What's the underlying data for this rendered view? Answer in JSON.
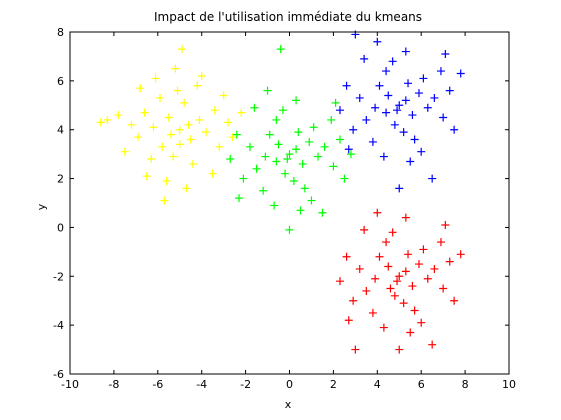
{
  "chart_data": {
    "type": "scatter",
    "title": "Impact de l'utilisation immédiate du kmeans",
    "xlabel": "x",
    "ylabel": "y",
    "xlim": [
      -10,
      10
    ],
    "ylim": [
      -6,
      8
    ],
    "xticks": [
      "-10",
      "-8",
      "-6",
      "-4",
      "-2",
      "0",
      "2",
      "4",
      "6",
      "8",
      "10"
    ],
    "yticks": [
      "-6",
      "-4",
      "-2",
      "0",
      "2",
      "4",
      "6",
      "8"
    ],
    "grid": false,
    "marker": "plus",
    "series": [
      {
        "color": "#ffff00",
        "points": [
          [
            -5.0,
            4.0
          ],
          [
            -5.5,
            4.5
          ],
          [
            -4.5,
            3.6
          ],
          [
            -6.2,
            4.1
          ],
          [
            -4.1,
            4.4
          ],
          [
            -5.8,
            3.3
          ],
          [
            -4.8,
            5.1
          ],
          [
            -5.3,
            2.9
          ],
          [
            -6.6,
            4.7
          ],
          [
            -3.8,
            3.9
          ],
          [
            -5.1,
            5.6
          ],
          [
            -6.9,
            3.7
          ],
          [
            -4.4,
            2.6
          ],
          [
            -3.4,
            4.8
          ],
          [
            -5.9,
            5.3
          ],
          [
            -6.3,
            2.8
          ],
          [
            -4.2,
            5.8
          ],
          [
            -7.2,
            4.2
          ],
          [
            -5.6,
            1.9
          ],
          [
            -3.2,
            3.3
          ],
          [
            -6.1,
            6.1
          ],
          [
            -4.7,
            1.6
          ],
          [
            -7.5,
            3.1
          ],
          [
            -2.8,
            4.3
          ],
          [
            -5.2,
            6.5
          ],
          [
            -7.8,
            4.6
          ],
          [
            -3.5,
            2.2
          ],
          [
            -6.8,
            5.7
          ],
          [
            -2.6,
            3.7
          ],
          [
            -4.0,
            6.2
          ],
          [
            -8.3,
            4.4
          ],
          [
            -5.7,
            1.1
          ],
          [
            -4.9,
            7.3
          ],
          [
            -8.6,
            4.3
          ],
          [
            -2.2,
            4.7
          ],
          [
            -6.5,
            2.1
          ],
          [
            -3.0,
            5.4
          ],
          [
            -5.4,
            3.8
          ],
          [
            -4.6,
            4.2
          ],
          [
            -5.0,
            3.4
          ]
        ]
      },
      {
        "color": "#00ff00",
        "points": [
          [
            0.0,
            3.0
          ],
          [
            -0.5,
            3.4
          ],
          [
            0.6,
            2.6
          ],
          [
            -1.1,
            2.9
          ],
          [
            0.9,
            3.5
          ],
          [
            -0.2,
            2.2
          ],
          [
            0.4,
            3.9
          ],
          [
            -0.9,
            3.8
          ],
          [
            1.3,
            2.9
          ],
          [
            -1.5,
            2.4
          ],
          [
            0.2,
            1.9
          ],
          [
            1.1,
            4.1
          ],
          [
            -0.6,
            4.4
          ],
          [
            1.6,
            3.3
          ],
          [
            -1.8,
            3.3
          ],
          [
            0.7,
            1.6
          ],
          [
            -0.3,
            4.8
          ],
          [
            2.0,
            2.5
          ],
          [
            -2.1,
            2.0
          ],
          [
            -1.2,
            1.5
          ],
          [
            1.9,
            4.4
          ],
          [
            -2.4,
            3.8
          ],
          [
            0.3,
            5.2
          ],
          [
            2.3,
            3.6
          ],
          [
            -1.6,
            4.9
          ],
          [
            1.0,
            1.1
          ],
          [
            -2.3,
            1.2
          ],
          [
            2.5,
            2.0
          ],
          [
            0.5,
            0.7
          ],
          [
            -0.7,
            0.9
          ],
          [
            2.1,
            5.1
          ],
          [
            -2.7,
            2.8
          ],
          [
            -0.4,
            7.3
          ],
          [
            0.0,
            -0.1
          ],
          [
            2.8,
            3.0
          ],
          [
            -1.0,
            5.6
          ],
          [
            1.5,
            0.6
          ],
          [
            -0.1,
            2.8
          ],
          [
            0.3,
            3.2
          ],
          [
            -0.6,
            2.7
          ]
        ]
      },
      {
        "color": "#0000ff",
        "points": [
          [
            5.0,
            5.0
          ],
          [
            4.5,
            5.4
          ],
          [
            5.6,
            4.6
          ],
          [
            3.9,
            4.9
          ],
          [
            5.9,
            5.5
          ],
          [
            4.8,
            4.2
          ],
          [
            5.4,
            5.9
          ],
          [
            4.1,
            5.8
          ],
          [
            6.3,
            4.9
          ],
          [
            3.5,
            4.4
          ],
          [
            5.2,
            3.9
          ],
          [
            6.1,
            6.1
          ],
          [
            4.4,
            6.4
          ],
          [
            6.6,
            5.3
          ],
          [
            3.2,
            5.3
          ],
          [
            5.7,
            3.6
          ],
          [
            4.7,
            6.8
          ],
          [
            7.0,
            4.5
          ],
          [
            2.9,
            4.0
          ],
          [
            3.8,
            3.5
          ],
          [
            6.9,
            6.4
          ],
          [
            2.6,
            5.8
          ],
          [
            5.3,
            7.2
          ],
          [
            7.3,
            5.6
          ],
          [
            3.4,
            6.9
          ],
          [
            6.0,
            3.1
          ],
          [
            2.7,
            3.2
          ],
          [
            7.5,
            4.0
          ],
          [
            5.5,
            2.7
          ],
          [
            4.3,
            2.9
          ],
          [
            7.1,
            7.1
          ],
          [
            2.3,
            4.8
          ],
          [
            3.0,
            7.9
          ],
          [
            5.0,
            1.6
          ],
          [
            7.8,
            6.3
          ],
          [
            4.0,
            7.6
          ],
          [
            6.5,
            2.0
          ],
          [
            4.9,
            4.8
          ],
          [
            5.3,
            5.2
          ],
          [
            4.4,
            4.7
          ]
        ]
      },
      {
        "color": "#ff0000",
        "points": [
          [
            5.0,
            -2.0
          ],
          [
            4.5,
            -1.6
          ],
          [
            5.6,
            -2.4
          ],
          [
            3.9,
            -2.1
          ],
          [
            5.9,
            -1.5
          ],
          [
            4.8,
            -2.8
          ],
          [
            5.4,
            -1.1
          ],
          [
            4.1,
            -1.2
          ],
          [
            6.3,
            -2.1
          ],
          [
            3.5,
            -2.6
          ],
          [
            5.2,
            -3.1
          ],
          [
            6.1,
            -0.9
          ],
          [
            4.4,
            -0.6
          ],
          [
            6.6,
            -1.7
          ],
          [
            3.2,
            -1.7
          ],
          [
            5.7,
            -3.4
          ],
          [
            4.7,
            -0.2
          ],
          [
            7.0,
            -2.5
          ],
          [
            2.9,
            -3.0
          ],
          [
            3.8,
            -3.5
          ],
          [
            6.9,
            -0.6
          ],
          [
            2.6,
            -1.2
          ],
          [
            5.3,
            0.4
          ],
          [
            7.3,
            -1.4
          ],
          [
            3.4,
            -0.1
          ],
          [
            6.0,
            -3.9
          ],
          [
            2.7,
            -3.8
          ],
          [
            7.5,
            -3.0
          ],
          [
            5.5,
            -4.3
          ],
          [
            4.3,
            -4.1
          ],
          [
            7.1,
            0.1
          ],
          [
            2.3,
            -2.2
          ],
          [
            3.0,
            -5.0
          ],
          [
            5.0,
            -5.0
          ],
          [
            7.8,
            -1.1
          ],
          [
            4.0,
            0.6
          ],
          [
            6.5,
            -4.8
          ],
          [
            4.9,
            -2.2
          ],
          [
            5.3,
            -1.8
          ],
          [
            4.6,
            -2.5
          ]
        ]
      }
    ]
  }
}
